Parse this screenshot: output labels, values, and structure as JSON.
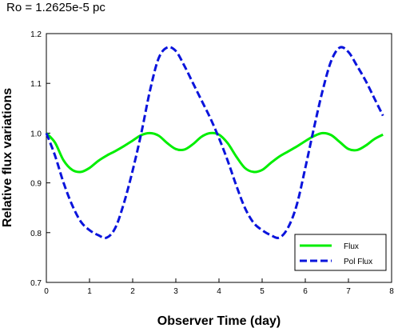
{
  "chart_data": {
    "type": "line",
    "title": "Ro = 1.2625e-5 pc",
    "xlabel": "Observer Time (day)",
    "ylabel": "Relative flux variations",
    "xlim": [
      0,
      8
    ],
    "ylim": [
      0.7,
      1.2
    ],
    "xticks": [
      "0",
      "1",
      "2",
      "3",
      "4",
      "5",
      "6",
      "7",
      "8"
    ],
    "yticks": [
      "0.7",
      "0.8",
      "0.9",
      "1.0",
      "1.1",
      "1.2"
    ],
    "grid": false,
    "legend_position": "bottom-right",
    "series": [
      {
        "name": "Flux",
        "color": "#00ee00",
        "style": "solid",
        "x": [
          0,
          0.2,
          0.4,
          0.6,
          0.8,
          1.0,
          1.2,
          1.4,
          1.6,
          1.8,
          2.0,
          2.2,
          2.4,
          2.6,
          2.8,
          3.0,
          3.2,
          3.4,
          3.6,
          3.8,
          4.0,
          4.2,
          4.4,
          4.6,
          4.8,
          5.0,
          5.2,
          5.4,
          5.6,
          5.8,
          6.0,
          6.2,
          6.4,
          6.6,
          6.8,
          7.0,
          7.2,
          7.4,
          7.6,
          7.8
        ],
        "values": [
          1.0,
          0.981,
          0.945,
          0.926,
          0.922,
          0.93,
          0.944,
          0.955,
          0.964,
          0.974,
          0.985,
          0.996,
          1.0,
          0.995,
          0.98,
          0.968,
          0.967,
          0.978,
          0.993,
          1.0,
          0.997,
          0.98,
          0.953,
          0.93,
          0.922,
          0.926,
          0.94,
          0.953,
          0.963,
          0.973,
          0.984,
          0.994,
          1.0,
          0.996,
          0.982,
          0.968,
          0.966,
          0.975,
          0.988,
          0.997
        ]
      },
      {
        "name": "Pol Flux",
        "color": "#0a14dc",
        "style": "dashed",
        "x": [
          0,
          0.2,
          0.4,
          0.6,
          0.8,
          1.0,
          1.2,
          1.4,
          1.6,
          1.8,
          2.0,
          2.2,
          2.4,
          2.6,
          2.8,
          3.0,
          3.2,
          3.4,
          3.6,
          3.8,
          4.0,
          4.2,
          4.4,
          4.6,
          4.8,
          5.0,
          5.2,
          5.4,
          5.6,
          5.8,
          6.0,
          6.2,
          6.4,
          6.6,
          6.8,
          7.0,
          7.2,
          7.4,
          7.6,
          7.8
        ],
        "values": [
          1.0,
          0.955,
          0.9,
          0.855,
          0.822,
          0.805,
          0.795,
          0.79,
          0.81,
          0.86,
          0.925,
          1.0,
          1.085,
          1.15,
          1.172,
          1.165,
          1.135,
          1.1,
          1.065,
          1.03,
          0.99,
          0.945,
          0.895,
          0.85,
          0.82,
          0.805,
          0.795,
          0.79,
          0.81,
          0.855,
          0.93,
          1.01,
          1.085,
          1.145,
          1.172,
          1.163,
          1.135,
          1.105,
          1.07,
          1.035
        ]
      }
    ]
  }
}
